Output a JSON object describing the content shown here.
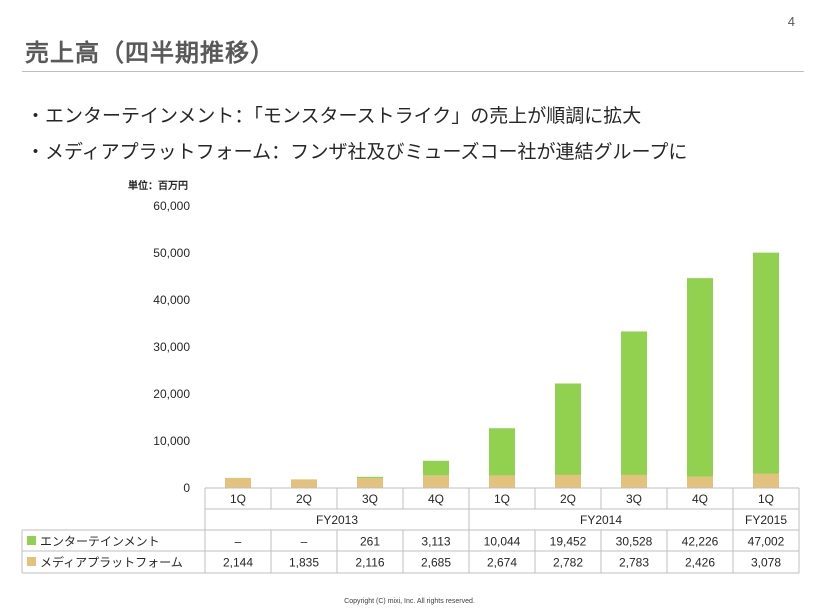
{
  "slide": {
    "page_number": "4",
    "title": "売上高（四半期推移）",
    "bullets": [
      "・エンターテインメント：「モンスターストライク」の売上が順調に拡大",
      "・メディアプラットフォーム：フンザ社及びミューズコー社が連結グループに"
    ],
    "copyright": "Copyright (C) mixi, Inc. All rights reserved."
  },
  "chart_data": {
    "type": "bar",
    "stacked": true,
    "unit_label": "単位：百万円",
    "categories": [
      "1Q",
      "2Q",
      "3Q",
      "4Q",
      "1Q",
      "2Q",
      "3Q",
      "4Q",
      "1Q"
    ],
    "fiscal_years": [
      {
        "label": "FY2013",
        "start": 0,
        "end": 3
      },
      {
        "label": "FY2014",
        "start": 4,
        "end": 7
      },
      {
        "label": "FY2015",
        "start": 8,
        "end": 8
      }
    ],
    "ylim": [
      0,
      60000
    ],
    "yticks": [
      0,
      10000,
      20000,
      30000,
      40000,
      50000,
      60000
    ],
    "ytick_labels": [
      "0",
      "10,000",
      "20,000",
      "30,000",
      "40,000",
      "50,000",
      "60,000"
    ],
    "series": [
      {
        "name": "メディアプラットフォーム",
        "color": "#e2c27c",
        "values": [
          2144,
          1835,
          2116,
          2685,
          2674,
          2782,
          2783,
          2426,
          3078
        ],
        "labels": [
          "2,144",
          "1,835",
          "2,116",
          "2,685",
          "2,674",
          "2,782",
          "2,783",
          "2,426",
          "3,078"
        ]
      },
      {
        "name": "エンターテインメント",
        "color": "#92d050",
        "values": [
          0,
          0,
          261,
          3113,
          10044,
          19452,
          30528,
          42226,
          47002
        ],
        "labels": [
          "–",
          "–",
          "261",
          "3,113",
          "10,044",
          "19,452",
          "30,528",
          "42,226",
          "47,002"
        ]
      }
    ],
    "table_row_order": [
      1,
      0
    ],
    "grid": false,
    "legend": "table-rows"
  }
}
